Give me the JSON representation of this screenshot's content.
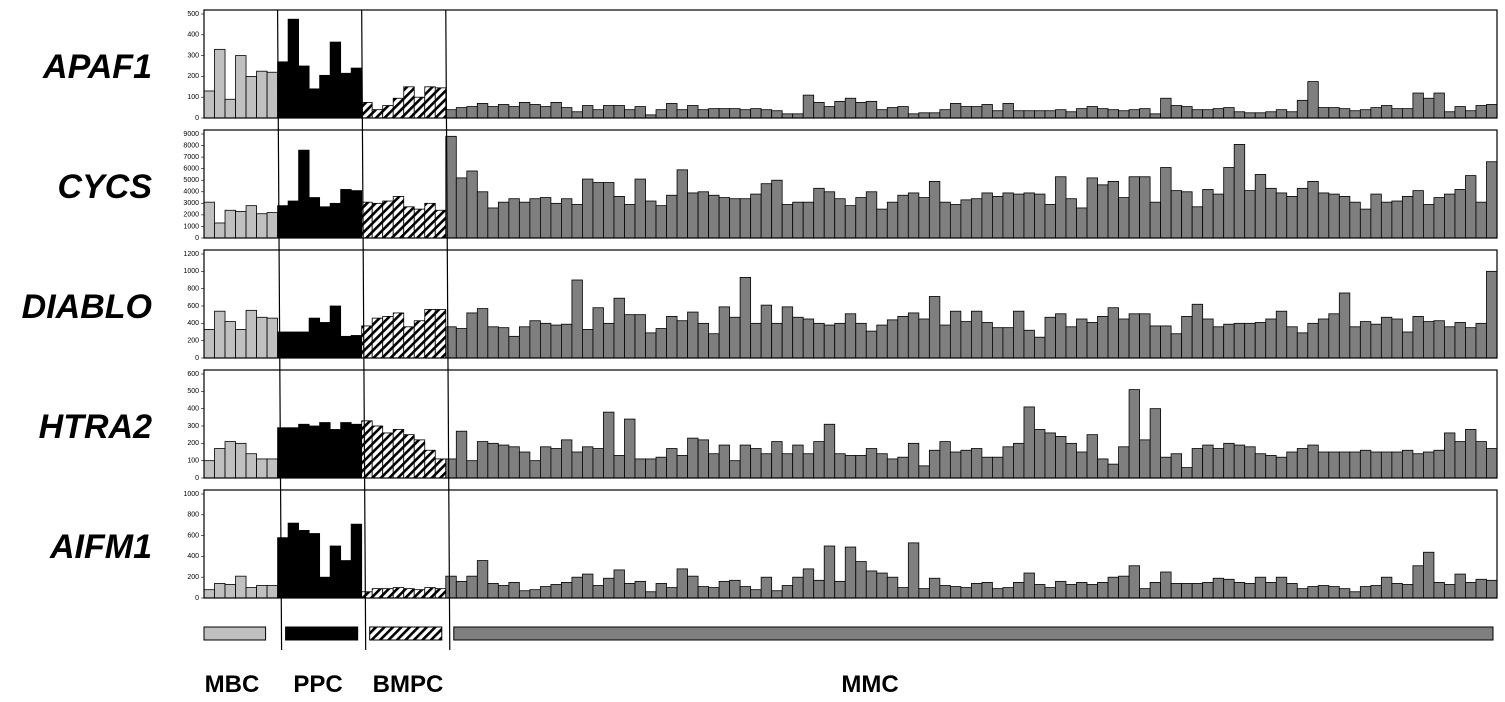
{
  "chart_data": [
    {
      "type": "bar",
      "title": "APAF1",
      "ylim": [
        0,
        500
      ],
      "yticks": [
        0,
        100,
        200,
        300,
        400,
        500
      ],
      "series": [
        {
          "name": "MBC",
          "color": "#c0c0c0",
          "values": [
            130,
            330,
            90,
            300,
            200,
            225,
            220
          ]
        },
        {
          "name": "PPC",
          "color": "#000000",
          "values": [
            270,
            475,
            250,
            140,
            205,
            365,
            215,
            240
          ]
        },
        {
          "name": "BMPC",
          "color": "#ffffff",
          "pattern": "hatch",
          "values": [
            75,
            40,
            60,
            95,
            150,
            100,
            150,
            145
          ]
        },
        {
          "name": "MMC",
          "color": "#7f7f7f",
          "values": [
            40,
            50,
            55,
            70,
            55,
            65,
            55,
            75,
            65,
            55,
            75,
            50,
            30,
            60,
            40,
            60,
            60,
            40,
            55,
            15,
            40,
            70,
            40,
            60,
            40,
            45,
            45,
            45,
            40,
            45,
            40,
            35,
            20,
            20,
            110,
            75,
            55,
            80,
            95,
            75,
            80,
            40,
            50,
            55,
            20,
            25,
            25,
            40,
            70,
            55,
            55,
            65,
            35,
            70,
            35,
            35,
            35,
            35,
            40,
            30,
            45,
            55,
            45,
            40,
            35,
            40,
            45,
            20,
            95,
            60,
            55,
            40,
            40,
            45,
            50,
            30,
            25,
            25,
            30,
            40,
            30,
            85,
            175,
            50,
            50,
            45,
            35,
            40,
            50,
            60,
            45,
            45,
            120,
            95,
            120,
            30,
            55,
            35,
            60,
            65
          ]
        }
      ]
    },
    {
      "type": "bar",
      "title": "CYCS",
      "ylim": [
        0,
        9000
      ],
      "yticks": [
        0,
        1000,
        2000,
        3000,
        4000,
        5000,
        6000,
        7000,
        8000,
        9000
      ],
      "series": [
        {
          "name": "MBC",
          "color": "#c0c0c0",
          "values": [
            3100,
            1300,
            2400,
            2300,
            2800,
            2100,
            2200
          ]
        },
        {
          "name": "PPC",
          "color": "#000000",
          "values": [
            2800,
            3200,
            7600,
            3500,
            2700,
            3000,
            4200,
            4100
          ]
        },
        {
          "name": "BMPC",
          "color": "#ffffff",
          "pattern": "hatch",
          "values": [
            3100,
            3000,
            3200,
            3600,
            2700,
            2500,
            3000,
            2400
          ]
        },
        {
          "name": "MMC",
          "color": "#7f7f7f",
          "values": [
            8800,
            5200,
            5800,
            4000,
            2600,
            3100,
            3400,
            3100,
            3400,
            3500,
            3000,
            3400,
            2900,
            5100,
            4800,
            4800,
            3600,
            2900,
            5100,
            3200,
            2800,
            3700,
            5900,
            3900,
            4000,
            3700,
            3500,
            3400,
            3400,
            3800,
            4700,
            5000,
            2900,
            3100,
            3100,
            4300,
            4000,
            3400,
            2800,
            3500,
            4000,
            2500,
            3100,
            3700,
            3900,
            3500,
            4900,
            3100,
            2900,
            3300,
            3400,
            3900,
            3600,
            3900,
            3800,
            3900,
            3800,
            2900,
            5300,
            3400,
            2600,
            5200,
            4600,
            4900,
            3500,
            5300,
            5300,
            3100,
            6100,
            4100,
            4000,
            2700,
            4200,
            3800,
            6100,
            8100,
            4100,
            5500,
            4300,
            3900,
            3600,
            4300,
            4900,
            3900,
            3800,
            3600,
            3100,
            2500,
            3800,
            3100,
            3200,
            3600,
            4100,
            2900,
            3500,
            3800,
            4200,
            5400,
            3100,
            6600
          ]
        }
      ]
    },
    {
      "type": "bar",
      "title": "DIABLO",
      "ylim": [
        0,
        1200
      ],
      "yticks": [
        0,
        200,
        400,
        600,
        800,
        1000,
        1200
      ],
      "series": [
        {
          "name": "MBC",
          "color": "#c0c0c0",
          "values": [
            330,
            540,
            420,
            330,
            550,
            470,
            460
          ]
        },
        {
          "name": "PPC",
          "color": "#000000",
          "values": [
            300,
            300,
            300,
            460,
            410,
            600,
            250,
            260
          ]
        },
        {
          "name": "BMPC",
          "color": "#ffffff",
          "pattern": "hatch",
          "values": [
            370,
            460,
            480,
            520,
            360,
            430,
            560,
            560
          ]
        },
        {
          "name": "MMC",
          "color": "#7f7f7f",
          "values": [
            360,
            340,
            520,
            570,
            360,
            350,
            250,
            360,
            430,
            400,
            380,
            390,
            900,
            330,
            580,
            400,
            690,
            500,
            500,
            290,
            340,
            480,
            430,
            530,
            400,
            280,
            590,
            470,
            930,
            400,
            610,
            400,
            590,
            470,
            450,
            400,
            380,
            400,
            510,
            400,
            310,
            380,
            440,
            480,
            520,
            450,
            710,
            380,
            540,
            420,
            540,
            410,
            350,
            350,
            540,
            320,
            240,
            470,
            510,
            360,
            450,
            410,
            480,
            580,
            450,
            510,
            510,
            370,
            370,
            280,
            480,
            620,
            450,
            360,
            390,
            400,
            400,
            410,
            450,
            540,
            360,
            290,
            400,
            450,
            510,
            750,
            360,
            420,
            390,
            470,
            450,
            300,
            480,
            420,
            430,
            360,
            410,
            350,
            400,
            1000
          ]
        }
      ]
    },
    {
      "type": "bar",
      "title": "HTRA2",
      "ylim": [
        0,
        600
      ],
      "yticks": [
        0,
        100,
        200,
        300,
        400,
        500,
        600
      ],
      "series": [
        {
          "name": "MBC",
          "color": "#c0c0c0",
          "values": [
            100,
            170,
            210,
            200,
            140,
            110,
            110
          ]
        },
        {
          "name": "PPC",
          "color": "#000000",
          "values": [
            290,
            290,
            310,
            300,
            320,
            280,
            320,
            310
          ]
        },
        {
          "name": "BMPC",
          "color": "#ffffff",
          "pattern": "hatch",
          "values": [
            330,
            300,
            260,
            280,
            250,
            220,
            160,
            110
          ]
        },
        {
          "name": "MMC",
          "color": "#7f7f7f",
          "values": [
            110,
            270,
            100,
            210,
            200,
            190,
            180,
            150,
            100,
            180,
            170,
            220,
            150,
            180,
            170,
            380,
            130,
            340,
            110,
            110,
            120,
            170,
            130,
            230,
            220,
            140,
            190,
            100,
            190,
            170,
            140,
            210,
            140,
            190,
            140,
            210,
            310,
            140,
            130,
            130,
            170,
            140,
            110,
            120,
            200,
            70,
            160,
            210,
            150,
            160,
            170,
            120,
            120,
            180,
            200,
            410,
            280,
            260,
            240,
            200,
            150,
            250,
            110,
            80,
            180,
            510,
            220,
            400,
            120,
            140,
            60,
            170,
            190,
            170,
            200,
            190,
            180,
            140,
            130,
            120,
            150,
            170,
            190,
            150,
            150,
            150,
            150,
            160,
            150,
            150,
            150,
            160,
            140,
            150,
            160,
            260,
            210,
            280,
            210,
            170
          ]
        }
      ]
    },
    {
      "type": "bar",
      "title": "AIFM1",
      "ylim": [
        0,
        1000
      ],
      "yticks": [
        0,
        200,
        400,
        600,
        800,
        1000
      ],
      "series": [
        {
          "name": "MBC",
          "color": "#c0c0c0",
          "values": [
            80,
            140,
            130,
            210,
            100,
            120,
            120
          ]
        },
        {
          "name": "PPC",
          "color": "#000000",
          "values": [
            580,
            720,
            650,
            620,
            200,
            500,
            360,
            710
          ]
        },
        {
          "name": "BMPC",
          "color": "#ffffff",
          "pattern": "hatch",
          "values": [
            60,
            90,
            90,
            100,
            90,
            80,
            100,
            90
          ]
        },
        {
          "name": "MMC",
          "color": "#7f7f7f",
          "values": [
            210,
            160,
            210,
            360,
            140,
            120,
            150,
            70,
            80,
            110,
            130,
            150,
            200,
            230,
            120,
            190,
            270,
            140,
            160,
            60,
            140,
            100,
            280,
            210,
            110,
            100,
            160,
            170,
            110,
            80,
            200,
            70,
            120,
            200,
            280,
            170,
            500,
            160,
            490,
            350,
            260,
            240,
            200,
            100,
            530,
            90,
            190,
            120,
            110,
            100,
            140,
            150,
            90,
            100,
            150,
            240,
            130,
            100,
            160,
            130,
            150,
            130,
            150,
            200,
            210,
            310,
            90,
            150,
            250,
            140,
            140,
            140,
            150,
            190,
            180,
            150,
            140,
            200,
            150,
            200,
            140,
            90,
            110,
            120,
            110,
            90,
            60,
            110,
            120,
            200,
            140,
            130,
            310,
            440,
            150,
            130,
            230,
            150,
            180,
            170
          ]
        }
      ]
    }
  ]
}
